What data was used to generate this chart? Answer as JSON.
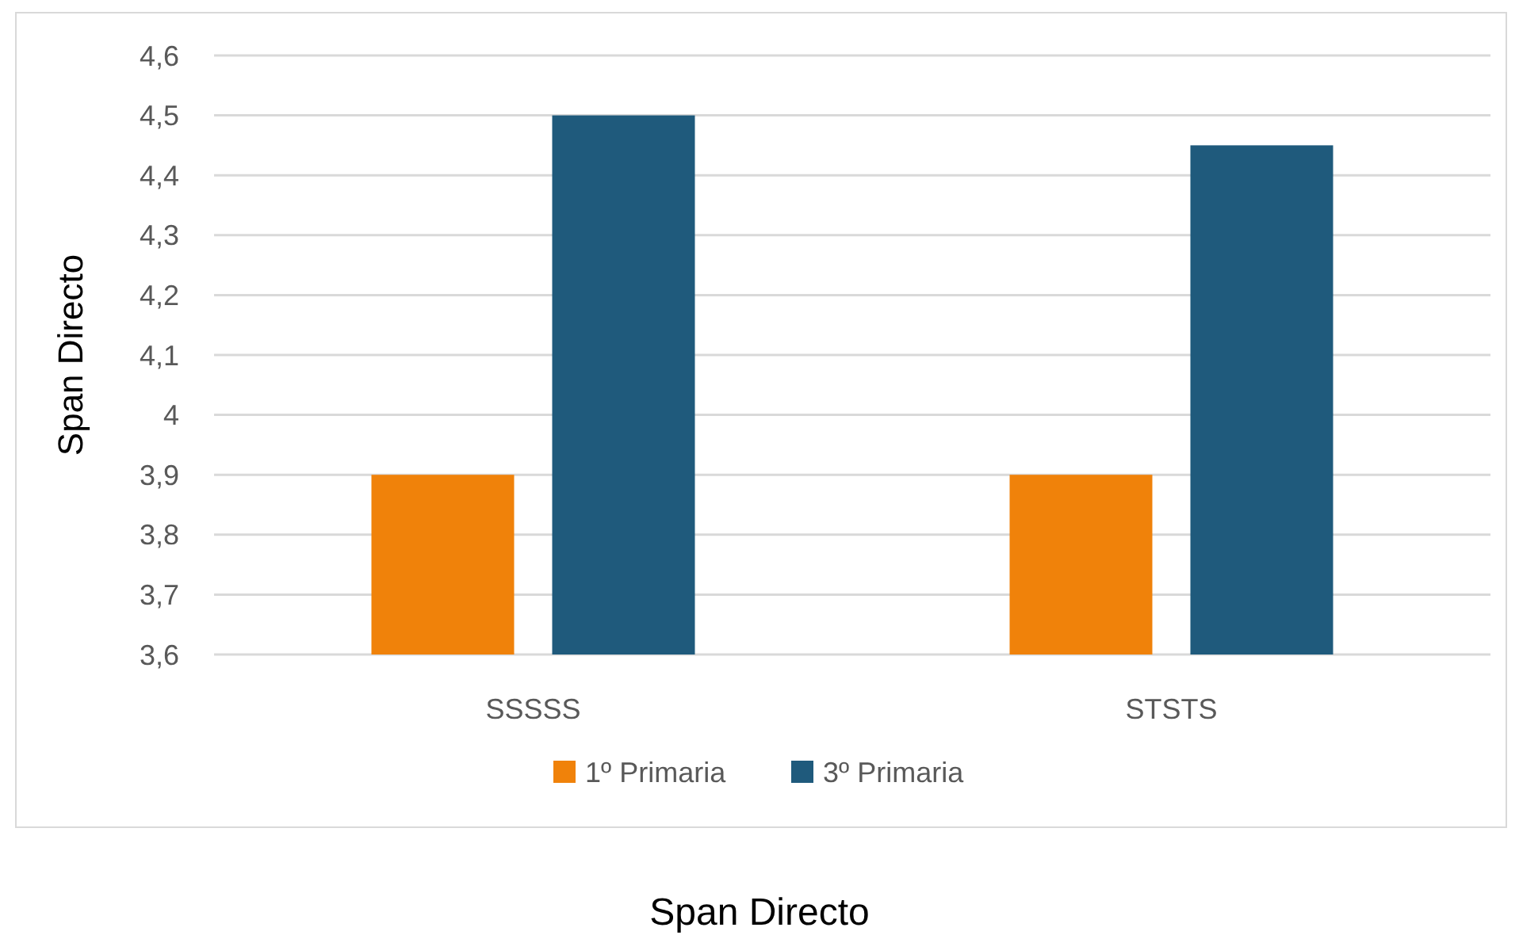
{
  "chart_data": {
    "type": "bar",
    "xlabel": "Span Directo",
    "ylabel": "Span Directo",
    "categories": [
      "SSSSS",
      "STSTS"
    ],
    "series": [
      {
        "name": "1º Primaria",
        "color": "#f0820a",
        "values": [
          3.9,
          3.9
        ]
      },
      {
        "name": "3º Primaria",
        "color": "#1f5a7c",
        "values": [
          4.5,
          4.45
        ]
      }
    ],
    "ylim": [
      3.6,
      4.6
    ],
    "yticks": [
      {
        "value": 3.6,
        "label": "3,6"
      },
      {
        "value": 3.7,
        "label": "3,7"
      },
      {
        "value": 3.8,
        "label": "3,8"
      },
      {
        "value": 3.9,
        "label": "3,9"
      },
      {
        "value": 4,
        "label": "4"
      },
      {
        "value": 4.1,
        "label": "4,1"
      },
      {
        "value": 4.2,
        "label": "4,2"
      },
      {
        "value": 4.3,
        "label": "4,3"
      },
      {
        "value": 4.4,
        "label": "4,4"
      },
      {
        "value": 4.5,
        "label": "4,5"
      },
      {
        "value": 4.6,
        "label": "4,6"
      }
    ],
    "grid": "y",
    "legend": "bottom"
  }
}
